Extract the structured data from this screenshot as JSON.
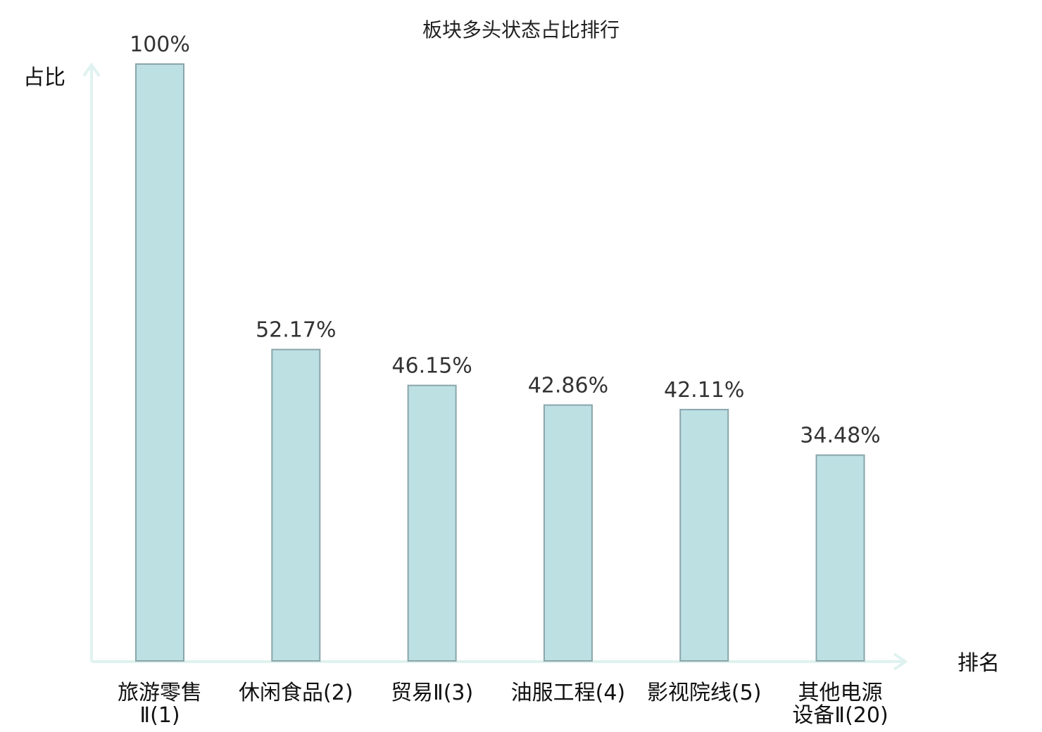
{
  "chart_data": {
    "type": "bar",
    "title": "板块多头状态占比排行",
    "ylabel": "占比",
    "xlabel": "排名",
    "ylim": [
      0,
      100
    ],
    "grid": false,
    "categories": [
      {
        "lines": [
          "旅游零售",
          "Ⅱ(1)"
        ],
        "highlight": false
      },
      {
        "lines": [
          "休闲食品(2)"
        ],
        "highlight": false
      },
      {
        "lines": [
          "贸易Ⅱ(3)"
        ],
        "highlight": false
      },
      {
        "lines": [
          "油服工程(4)"
        ],
        "highlight": false
      },
      {
        "lines": [
          "影视院线(5)"
        ],
        "highlight": false
      },
      {
        "lines": [
          "其他电源",
          "设备Ⅱ(20)"
        ],
        "highlight": true
      }
    ],
    "values": [
      100,
      52.17,
      46.15,
      42.86,
      42.11,
      34.48
    ],
    "value_labels": [
      "100%",
      "52.17%",
      "46.15%",
      "42.86%",
      "42.11%",
      "34.48%"
    ]
  },
  "colors": {
    "bar_fill": "#bde0e3",
    "bar_stroke": "#8aa5ab",
    "axis": "#dff2ef",
    "highlight": "#e01010",
    "text": "#111111",
    "value_text": "#333333"
  }
}
